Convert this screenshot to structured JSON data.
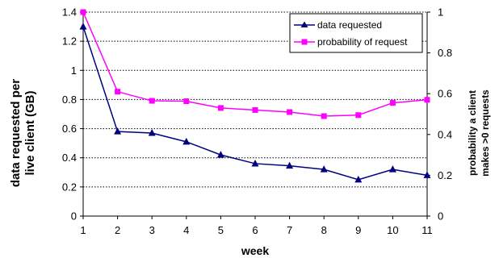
{
  "chart_data": {
    "type": "line",
    "x": [
      1,
      2,
      3,
      4,
      5,
      6,
      7,
      8,
      9,
      10,
      11
    ],
    "xlabel": "week",
    "ylabel_left": [
      "data requested per",
      "live client (GB)"
    ],
    "ylabel_right": [
      "probability a client",
      "makes >0 requests"
    ],
    "ylim_left": [
      0,
      1.4
    ],
    "ylim_right": [
      0,
      1
    ],
    "yticks_left": [
      "0",
      "0.2",
      "0.4",
      "0.6",
      "0.8",
      "1",
      "1.2",
      "1.4"
    ],
    "yticks_right": [
      "0",
      "0.2",
      "0.4",
      "0.6",
      "0.8",
      "1"
    ],
    "grid": "horizontal dotted",
    "legend_position": "top-right",
    "series": [
      {
        "name": "data requested",
        "axis": "left",
        "color": "#00007F",
        "marker": "triangle",
        "values": [
          1.3,
          0.58,
          0.57,
          0.51,
          0.42,
          0.36,
          0.345,
          0.32,
          0.25,
          0.32,
          0.28
        ]
      },
      {
        "name": "probability of request",
        "axis": "right",
        "color": "#FF00FF",
        "marker": "square",
        "values": [
          1.0,
          0.61,
          0.565,
          0.563,
          0.53,
          0.52,
          0.51,
          0.49,
          0.495,
          0.555,
          0.57
        ]
      }
    ]
  }
}
